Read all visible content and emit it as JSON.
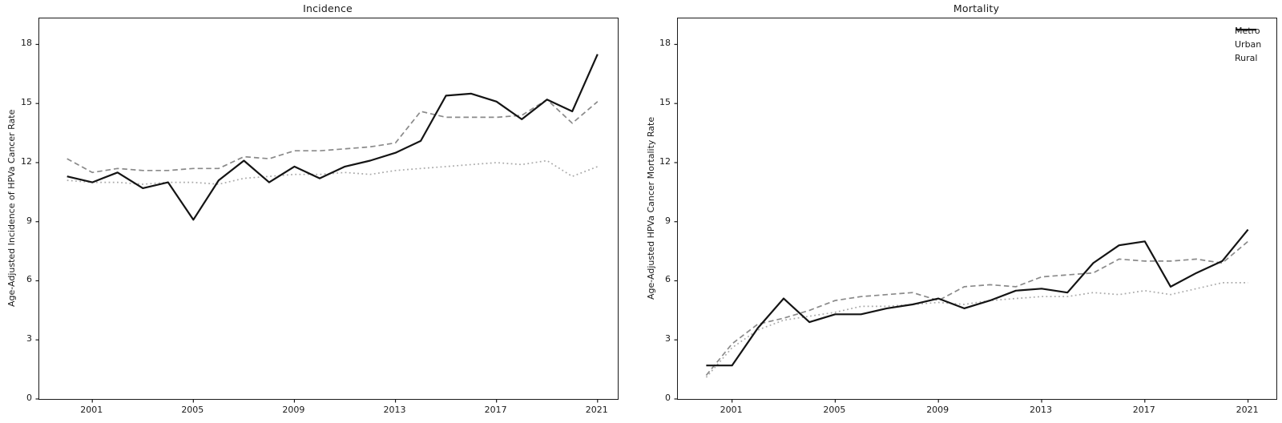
{
  "figure": {
    "background": "#ffffff",
    "axis_color": "#1a1a1a"
  },
  "chart_data": [
    {
      "type": "line",
      "title": "Incidence",
      "xlabel": "",
      "ylabel": "Age-Adjusted Incidence of HPVa Cancer Rate",
      "x": [
        2000,
        2001,
        2002,
        2003,
        2004,
        2005,
        2006,
        2007,
        2008,
        2009,
        2010,
        2011,
        2012,
        2013,
        2014,
        2015,
        2016,
        2017,
        2018,
        2019,
        2020,
        2021
      ],
      "xticks": [
        2001,
        2005,
        2009,
        2013,
        2017,
        2021
      ],
      "yticks": [
        0,
        3,
        6,
        9,
        12,
        15,
        18
      ],
      "xlim": [
        1998.9,
        2021.8
      ],
      "ylim": [
        0,
        19.32
      ],
      "grid": false,
      "legend": {
        "show": false
      },
      "series": [
        {
          "name": "Metro",
          "style": "dotted",
          "color": "#a9a9a9",
          "width": 1.7,
          "values": [
            11.1,
            11.0,
            11.0,
            10.9,
            11.0,
            11.0,
            10.9,
            11.2,
            11.3,
            11.4,
            11.4,
            11.5,
            11.4,
            11.6,
            11.7,
            11.8,
            11.9,
            12.0,
            11.9,
            12.1,
            11.3,
            11.8
          ]
        },
        {
          "name": "Urban",
          "style": "dashed",
          "color": "#8a8a8a",
          "width": 1.7,
          "values": [
            12.2,
            11.5,
            11.7,
            11.6,
            11.6,
            11.7,
            11.7,
            12.3,
            12.2,
            12.6,
            12.6,
            12.7,
            12.8,
            13.0,
            14.6,
            14.3,
            14.3,
            14.3,
            14.4,
            15.2,
            14.0,
            15.1
          ]
        },
        {
          "name": "Rural",
          "style": "solid",
          "color": "#141414",
          "width": 2.2,
          "values": [
            11.3,
            11.0,
            11.5,
            10.7,
            11.0,
            9.1,
            11.1,
            12.1,
            11.0,
            11.8,
            11.2,
            11.8,
            12.1,
            12.5,
            13.1,
            15.4,
            15.5,
            15.1,
            14.2,
            15.2,
            14.6,
            17.5
          ]
        }
      ]
    },
    {
      "type": "line",
      "title": "Mortality",
      "xlabel": "",
      "ylabel": "Age-Adjusted HPVa Cancer Mortality Rate",
      "x": [
        2000,
        2001,
        2002,
        2003,
        2004,
        2005,
        2006,
        2007,
        2008,
        2009,
        2010,
        2011,
        2012,
        2013,
        2014,
        2015,
        2016,
        2017,
        2018,
        2019,
        2020,
        2021
      ],
      "xticks": [
        2001,
        2005,
        2009,
        2013,
        2017,
        2021
      ],
      "yticks": [
        0,
        3,
        6,
        9,
        12,
        15,
        18
      ],
      "xlim": [
        1998.9,
        2022.1
      ],
      "ylim": [
        0,
        19.32
      ],
      "grid": false,
      "legend": {
        "show": true,
        "position": "upper-right",
        "labels": [
          "Metro",
          "Urban",
          "Rural"
        ]
      },
      "series": [
        {
          "name": "Metro",
          "style": "dotted",
          "color": "#a9a9a9",
          "width": 1.7,
          "values": [
            1.1,
            2.6,
            3.5,
            4.0,
            4.2,
            4.4,
            4.7,
            4.7,
            4.8,
            4.9,
            4.8,
            5.0,
            5.1,
            5.2,
            5.2,
            5.4,
            5.3,
            5.5,
            5.3,
            5.6,
            5.9,
            5.9
          ]
        },
        {
          "name": "Urban",
          "style": "dashed",
          "color": "#8a8a8a",
          "width": 1.7,
          "values": [
            1.2,
            2.8,
            3.8,
            4.1,
            4.5,
            5.0,
            5.2,
            5.3,
            5.4,
            5.0,
            5.7,
            5.8,
            5.7,
            6.2,
            6.3,
            6.4,
            7.1,
            7.0,
            7.0,
            7.1,
            6.9,
            8.0
          ]
        },
        {
          "name": "Rural",
          "style": "solid",
          "color": "#141414",
          "width": 2.2,
          "values": [
            1.7,
            1.7,
            3.6,
            5.1,
            3.9,
            4.3,
            4.3,
            4.6,
            4.8,
            5.1,
            4.6,
            5.0,
            5.5,
            5.6,
            5.4,
            6.9,
            7.8,
            8.0,
            5.7,
            6.4,
            7.0,
            8.6
          ]
        }
      ]
    }
  ]
}
